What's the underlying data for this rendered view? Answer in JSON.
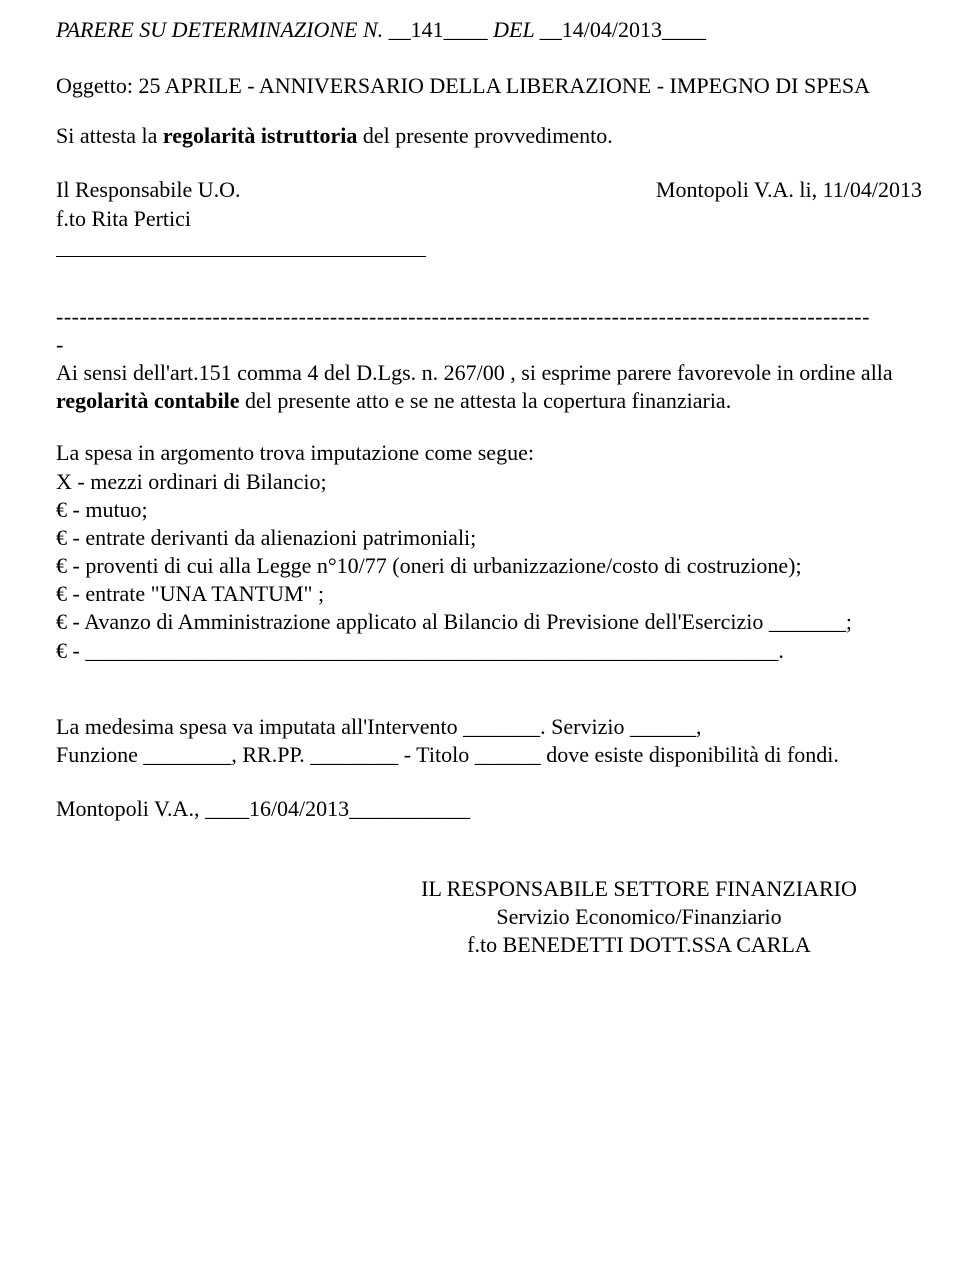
{
  "header": {
    "label_pre": "PARERE  SU  DETERMINAZIONE  N. __",
    "number": "141",
    "label_mid": "____ DEL __",
    "date": "14/04/2013",
    "label_post": "____"
  },
  "subject": {
    "label": "Oggetto: ",
    "text": "25 APRILE - ANNIVERSARIO DELLA LIBERAZIONE - IMPEGNO DI SPESA"
  },
  "attest": {
    "pre": "Si attesta la ",
    "bold": "regolarità istruttoria",
    "post": " del presente provvedimento."
  },
  "responsible": {
    "line1": "Il Responsabile  U.O.",
    "line2": "f.to Rita Pertici",
    "place_date": "Montopoli V.A. li, 11/04/2013"
  },
  "separator": "--------------------------------------------------------------------------------------------------------",
  "separator2": "-",
  "legal": {
    "pre": "Ai sensi dell'art.151 comma 4  del D.Lgs. n. 267/00 , si  esprime parere favorevole in ordine alla ",
    "bold": "regolarità contabile",
    "post": " del presente atto e se ne attesta la copertura finanziaria."
  },
  "spesa": {
    "intro": "La spesa in argomento trova imputazione come segue:",
    "l1": "X - mezzi ordinari di Bilancio;",
    "l2": "€ - mutuo;",
    "l3": "€ - entrate derivanti da alienazioni patrimoniali;",
    "l4": "€ - proventi di cui alla Legge n°10/77 (oneri di urbanizzazione/costo di costruzione);",
    "l5": "€ - entrate \"UNA TANTUM\" ;",
    "l6": "€ - Avanzo di Amministrazione applicato al Bilancio di Previsione dell'Esercizio _______;",
    "l7": "€ - _______________________________________________________________."
  },
  "final": {
    "line1": "La medesima spesa va  imputata all'Intervento _______. Servizio ______,",
    "line2": "Funzione ________, RR.PP. ________  - Titolo ______ dove esiste disponibilità di fondi."
  },
  "date_line": "Montopoli V.A., ____16/04/2013___________",
  "signature": {
    "l1": "IL RESPONSABILE  SETTORE  FINANZIARIO",
    "l2": "Servizio Economico/Finanziario",
    "l3": "f.to  BENEDETTI DOTT.SSA CARLA"
  }
}
